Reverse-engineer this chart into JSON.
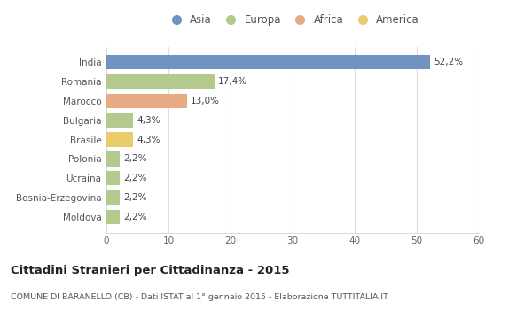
{
  "categories": [
    "India",
    "Romania",
    "Marocco",
    "Bulgaria",
    "Brasile",
    "Polonia",
    "Ucraina",
    "Bosnia-Erzegovina",
    "Moldova"
  ],
  "values": [
    52.2,
    17.4,
    13.0,
    4.3,
    4.3,
    2.2,
    2.2,
    2.2,
    2.2
  ],
  "labels": [
    "52,2%",
    "17,4%",
    "13,0%",
    "4,3%",
    "4,3%",
    "2,2%",
    "2,2%",
    "2,2%",
    "2,2%"
  ],
  "colors": [
    "#7094bf",
    "#b3c98d",
    "#e8aa82",
    "#b3c98d",
    "#e8cc6a",
    "#b3c98d",
    "#b3c98d",
    "#b3c98d",
    "#b3c98d"
  ],
  "legend_labels": [
    "Asia",
    "Europa",
    "Africa",
    "America"
  ],
  "legend_colors": [
    "#7094bf",
    "#b3c98d",
    "#e8aa82",
    "#e8cc6a"
  ],
  "title": "Cittadini Stranieri per Cittadinanza - 2015",
  "subtitle": "COMUNE DI BARANELLO (CB) - Dati ISTAT al 1° gennaio 2015 - Elaborazione TUTTITALIA.IT",
  "xlim": [
    0,
    60
  ],
  "xticks": [
    0,
    10,
    20,
    30,
    40,
    50,
    60
  ],
  "bg_color": "#ffffff",
  "plot_bg_color": "#ffffff",
  "grid_color": "#dddddd",
  "bar_height": 0.75
}
